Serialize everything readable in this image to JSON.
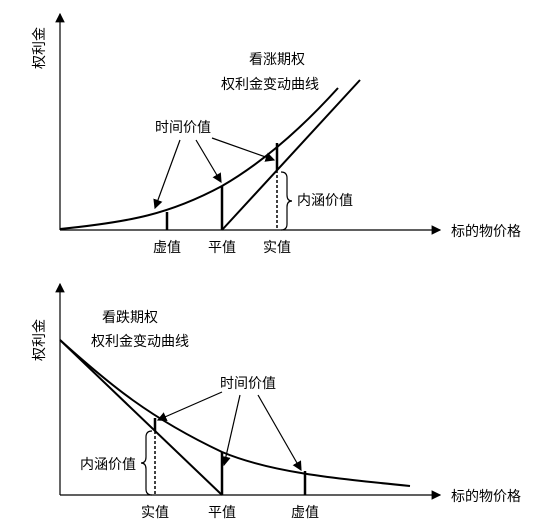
{
  "panels": [
    {
      "y_axis_label": "权利金",
      "title": [
        "看涨期权",
        "权利金变动曲线"
      ],
      "time_value_label": "时间价值",
      "intrinsic_value_label": "内涵价值",
      "x_labels": [
        "虚值",
        "平值",
        "实值"
      ],
      "x_axis_label": "标的物价格"
    },
    {
      "y_axis_label": "权利金",
      "title": [
        "看跌期权",
        "权利金变动曲线"
      ],
      "time_value_label": "时间价值",
      "intrinsic_value_label": "内涵价值",
      "x_labels": [
        "实值",
        "平值",
        "虚值"
      ],
      "x_axis_label": "标的物价格"
    }
  ]
}
